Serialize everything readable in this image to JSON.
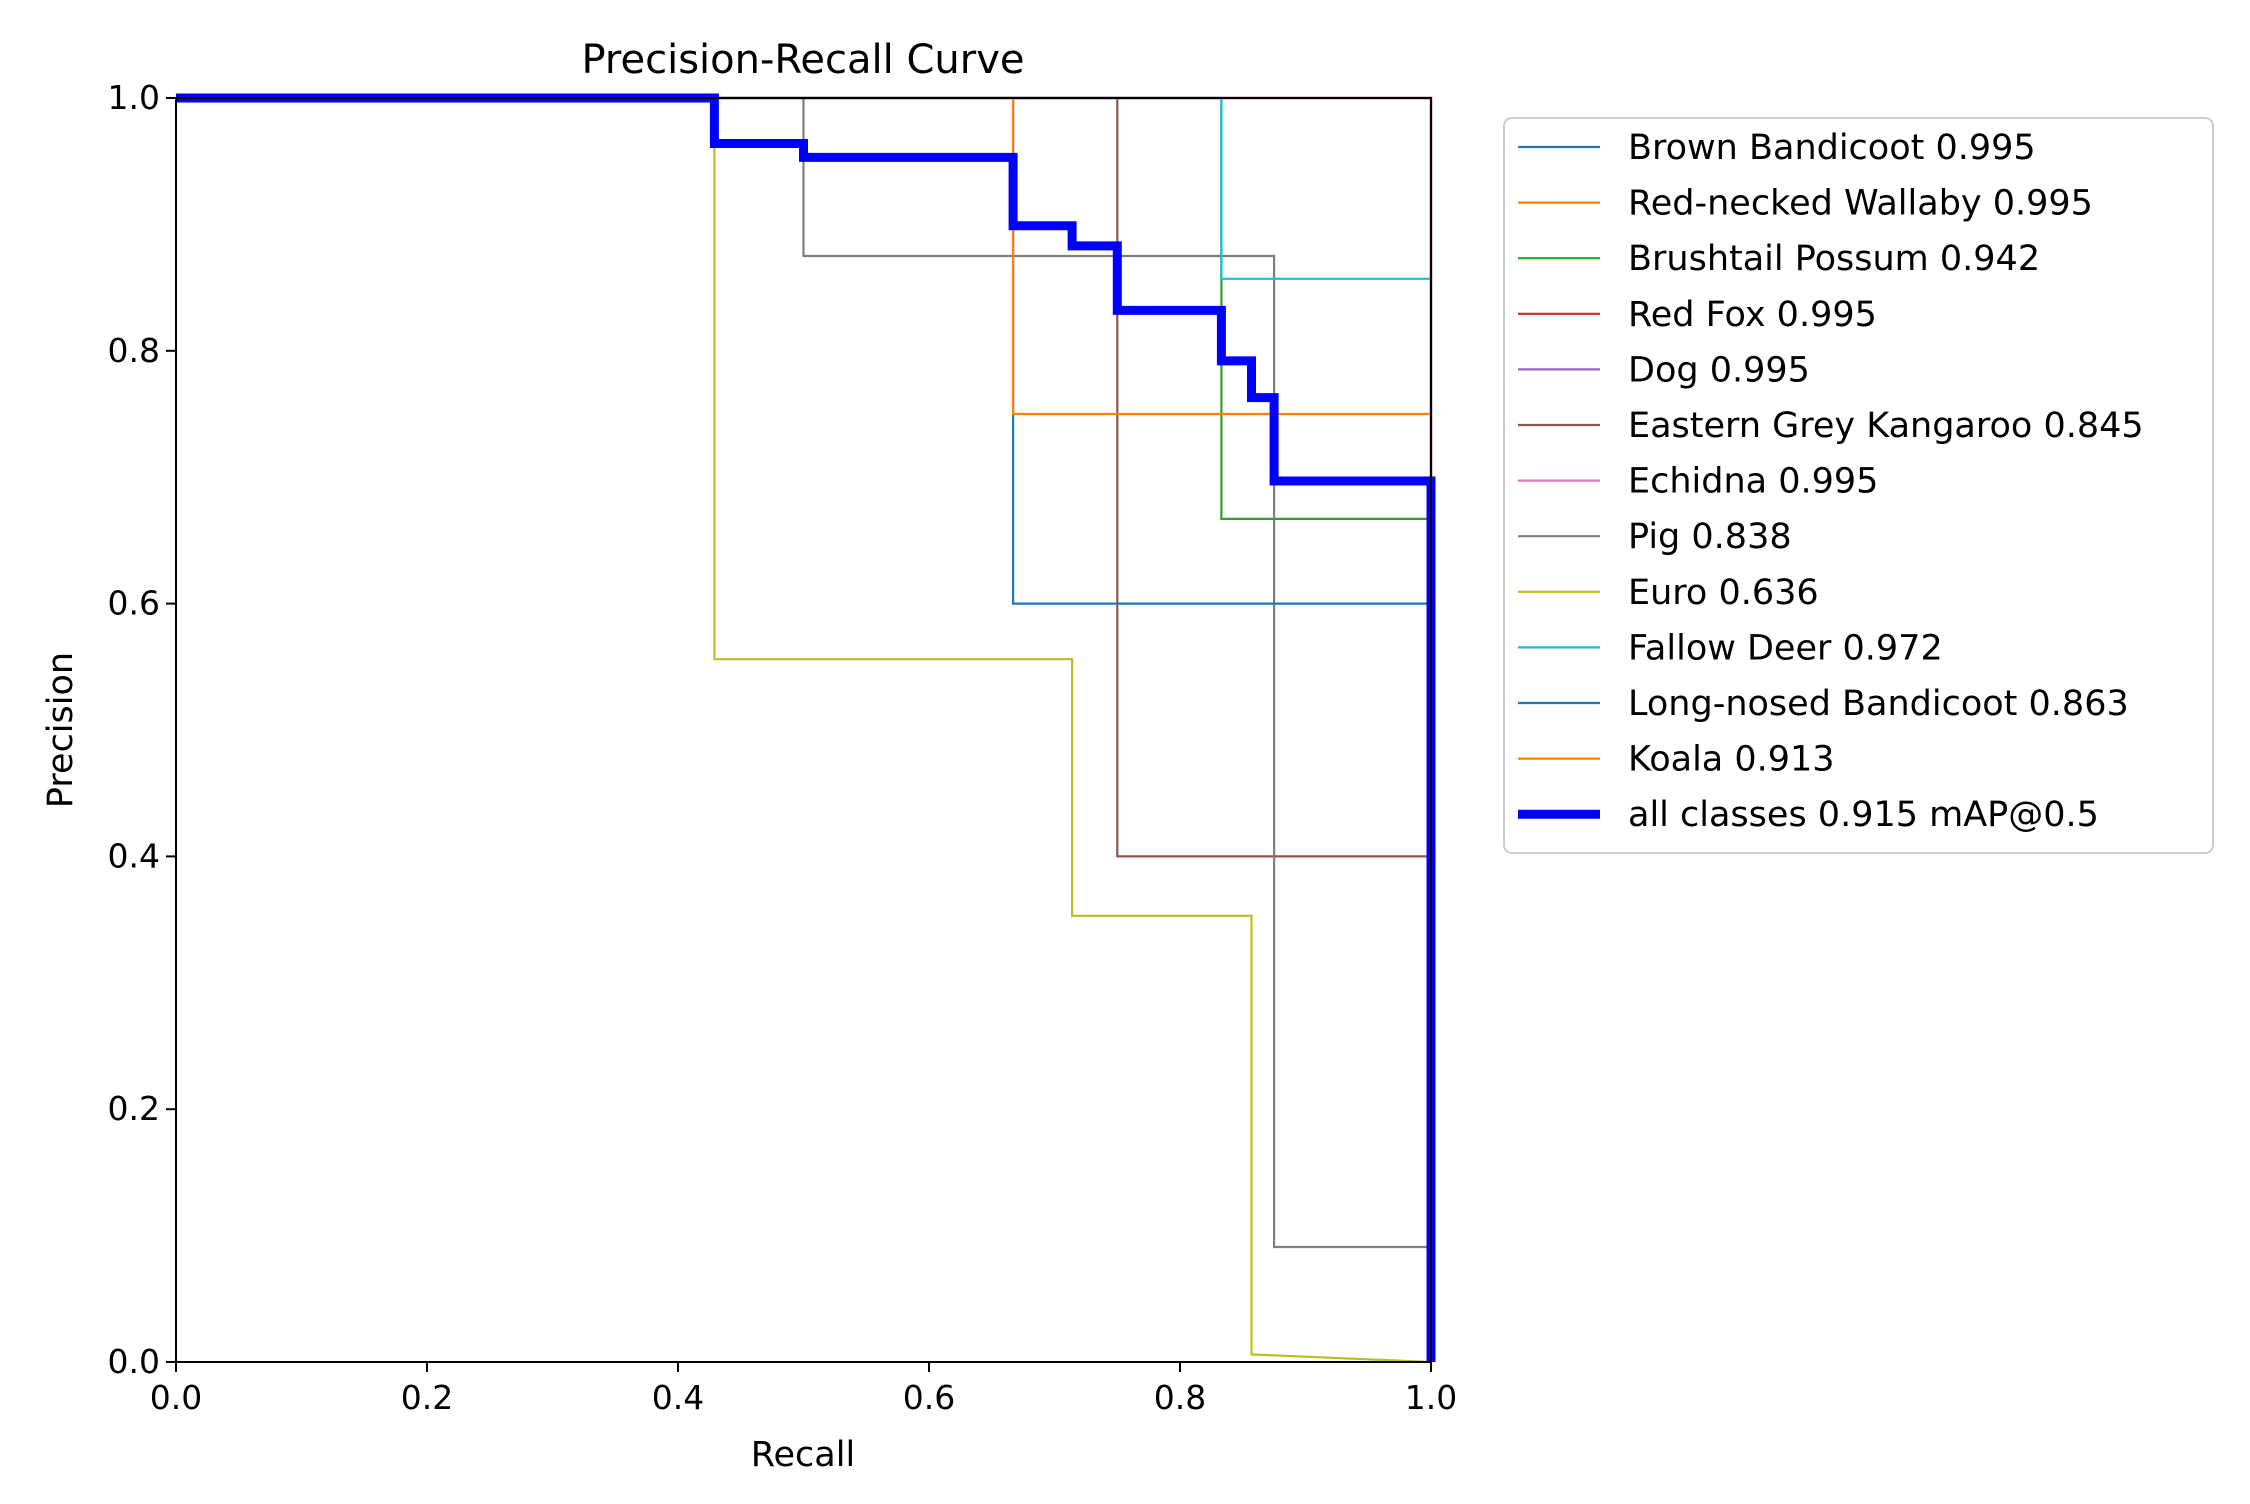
{
  "chart_data": {
    "type": "line",
    "title": "Precision-Recall Curve",
    "xlabel": "Recall",
    "ylabel": "Precision",
    "xlim": [
      0.0,
      1.0
    ],
    "ylim": [
      0.0,
      1.0
    ],
    "xticks": [
      "0.0",
      "0.2",
      "0.4",
      "0.6",
      "0.8",
      "1.0"
    ],
    "yticks": [
      "0.0",
      "0.2",
      "0.4",
      "0.6",
      "0.8",
      "1.0"
    ],
    "grid": false,
    "legend_position": "outside-right-top",
    "series": [
      {
        "name": "Brown Bandicoot 0.995",
        "color": "#1f77b4",
        "points": [
          [
            0,
            1
          ],
          [
            1.0,
            1.0
          ],
          [
            1.0,
            0.0
          ]
        ]
      },
      {
        "name": "Red-necked Wallaby 0.995",
        "color": "#ff7f0e",
        "points": [
          [
            0,
            1
          ],
          [
            1.0,
            1.0
          ],
          [
            1.0,
            0.0
          ]
        ]
      },
      {
        "name": "Brushtail Possum 0.942",
        "color": "#2ca02c",
        "points": [
          [
            0,
            1
          ],
          [
            0.833,
            1.0
          ],
          [
            0.833,
            0.667
          ],
          [
            1.0,
            0.667
          ],
          [
            1.0,
            0.0
          ]
        ]
      },
      {
        "name": "Red Fox 0.995",
        "color": "#d62728",
        "points": [
          [
            0,
            1
          ],
          [
            1.0,
            1.0
          ],
          [
            1.0,
            0.0
          ]
        ]
      },
      {
        "name": "Dog 0.995",
        "color": "#9467bd",
        "points": [
          [
            0,
            1
          ],
          [
            1.0,
            1.0
          ],
          [
            1.0,
            0.0
          ]
        ]
      },
      {
        "name": "Eastern Grey Kangaroo 0.845",
        "color": "#8c564b",
        "points": [
          [
            0,
            1
          ],
          [
            0.75,
            1.0
          ],
          [
            0.75,
            0.4
          ],
          [
            1.0,
            0.4
          ],
          [
            1.0,
            0.0
          ]
        ]
      },
      {
        "name": "Echidna 0.995",
        "color": "#e377c2",
        "points": [
          [
            0,
            1
          ],
          [
            1.0,
            1.0
          ],
          [
            1.0,
            0.0
          ]
        ]
      },
      {
        "name": "Pig 0.838",
        "color": "#7f7f7f",
        "points": [
          [
            0,
            1
          ],
          [
            0.5,
            1.0
          ],
          [
            0.5,
            0.875
          ],
          [
            0.875,
            0.875
          ],
          [
            0.875,
            0.091
          ],
          [
            1.0,
            0.091
          ],
          [
            1.0,
            0.0
          ]
        ]
      },
      {
        "name": "Euro 0.636",
        "color": "#bcbd22",
        "points": [
          [
            0,
            1
          ],
          [
            0.429,
            1.0
          ],
          [
            0.429,
            0.556
          ],
          [
            0.714,
            0.556
          ],
          [
            0.714,
            0.353
          ],
          [
            0.857,
            0.353
          ],
          [
            0.857,
            0.006
          ],
          [
            1.0,
            0.0
          ]
        ]
      },
      {
        "name": "Fallow Deer 0.972",
        "color": "#17becf",
        "points": [
          [
            0,
            1
          ],
          [
            0.833,
            1.0
          ],
          [
            0.833,
            0.857
          ],
          [
            1.0,
            0.857
          ],
          [
            1.0,
            0.0
          ]
        ]
      },
      {
        "name": "Long-nosed Bandicoot 0.863",
        "color": "#1f77b4",
        "points": [
          [
            0,
            1
          ],
          [
            0.667,
            1.0
          ],
          [
            0.667,
            0.6
          ],
          [
            1.0,
            0.6
          ],
          [
            1.0,
            0.0
          ]
        ]
      },
      {
        "name": "Koala 0.913",
        "color": "#ff7f0e",
        "points": [
          [
            0,
            1
          ],
          [
            0.667,
            1.0
          ],
          [
            0.667,
            0.75
          ],
          [
            1.0,
            0.75
          ],
          [
            1.0,
            0.0
          ]
        ]
      },
      {
        "name": "all classes 0.915 mAP@0.5",
        "color": "#0000ff",
        "thick": true,
        "points": [
          [
            0,
            1
          ],
          [
            0.429,
            1.0
          ],
          [
            0.429,
            0.964
          ],
          [
            0.5,
            0.964
          ],
          [
            0.5,
            0.953
          ],
          [
            0.667,
            0.953
          ],
          [
            0.667,
            0.899
          ],
          [
            0.714,
            0.899
          ],
          [
            0.714,
            0.883
          ],
          [
            0.75,
            0.883
          ],
          [
            0.75,
            0.832
          ],
          [
            0.833,
            0.832
          ],
          [
            0.833,
            0.792
          ],
          [
            0.857,
            0.792
          ],
          [
            0.857,
            0.763
          ],
          [
            0.875,
            0.763
          ],
          [
            0.875,
            0.697
          ],
          [
            1.0,
            0.697
          ],
          [
            1.0,
            0.0
          ]
        ]
      }
    ]
  }
}
